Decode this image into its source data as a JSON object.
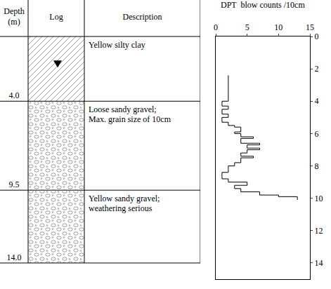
{
  "table": {
    "headers": [
      "Depth (m)",
      "Log",
      "Description"
    ],
    "layers": [
      {
        "bottom": {
          "value": 4.0,
          "label": "4.0"
        },
        "log": "clay",
        "description": "Yellow silty clay"
      },
      {
        "bottom": {
          "value": 9.5,
          "label": "9.5"
        },
        "log": "gravel",
        "description": "Loose sandy gravel; Max. grain size of 10cm"
      },
      {
        "bottom": {
          "value": 14.0,
          "label": "14.0"
        },
        "log": "gravel",
        "description": "Yellow sandy gravel; weathering serious"
      }
    ],
    "water_level": 1.7
  },
  "chart_data": {
    "type": "line",
    "title": "DPT  blow counts /10cm",
    "line_style": "step",
    "depth": [
      2.4,
      4.0,
      4.3,
      4.5,
      4.8,
      5.0,
      5.3,
      5.5,
      5.6,
      5.9,
      6.0,
      6.2,
      6.3,
      6.6,
      6.7,
      6.9,
      7.0,
      7.2,
      7.4,
      7.5,
      7.8,
      8.0,
      8.4,
      8.8,
      9.0,
      9.2,
      9.4,
      9.6,
      9.8,
      9.9,
      10.1
    ],
    "blow_counts": [
      2,
      1,
      2,
      1,
      2,
      1,
      2,
      3,
      4,
      3,
      4,
      6,
      4,
      7,
      5,
      7,
      5,
      4,
      6,
      4,
      3,
      2,
      1,
      2,
      5,
      3,
      4,
      7,
      10,
      13,
      13
    ],
    "xlim": [
      0,
      15
    ],
    "xticks": [
      0,
      5,
      10,
      15
    ],
    "ylim": [
      0,
      15
    ],
    "yticks": [
      0,
      2,
      4,
      6,
      8,
      10,
      12,
      14
    ],
    "grid": false
  }
}
